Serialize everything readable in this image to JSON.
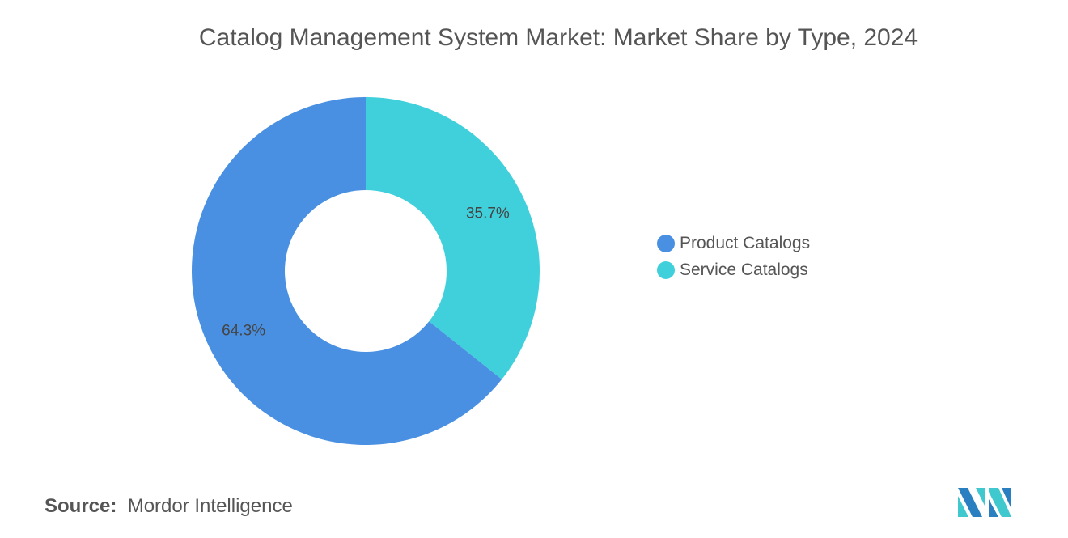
{
  "chart_data": {
    "type": "pie",
    "donut": true,
    "title": "Catalog Management System Market: Market Share by Type, 2024",
    "categories": [
      "Product Catalogs",
      "Service Catalogs"
    ],
    "values": [
      64.3,
      35.7
    ],
    "labels": [
      "64.3%",
      "35.7%"
    ],
    "colors": [
      "#4a90e2",
      "#40d0dc"
    ],
    "legend_position": "right"
  },
  "source": {
    "label": "Source:",
    "value": "Mordor Intelligence"
  },
  "logo": {
    "colors": [
      "#2a7fc0",
      "#40c8cf"
    ]
  }
}
